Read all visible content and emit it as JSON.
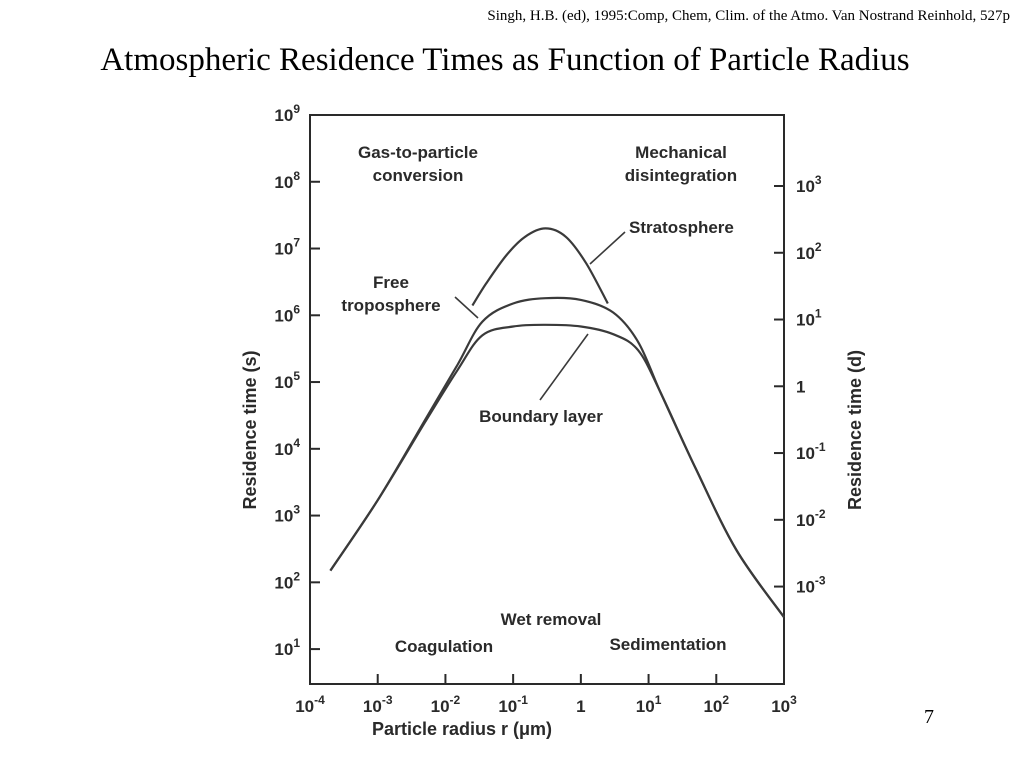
{
  "slide": {
    "citation": "Singh, H.B. (ed), 1995:Comp, Chem, Clim. of the Atmo. Van Nostrand Reinhold, 527p",
    "title": "Atmospheric Residence Times as Function of Particle Radius",
    "page_number": "7"
  },
  "chart_data": {
    "type": "line",
    "title": "",
    "xlabel": "Particle radius r (μm)",
    "ylabel": "Residence time (s)",
    "ylabel_right": "Residence time (d)",
    "xscale": "log",
    "yscale": "log",
    "xlim": [
      0.0001,
      1000
    ],
    "ylim": [
      3,
      1000000000
    ],
    "grid": false,
    "legend": "none",
    "x_ticks": [
      {
        "value": 0.0001,
        "base": "10",
        "exp": "-4"
      },
      {
        "value": 0.001,
        "base": "10",
        "exp": "-3"
      },
      {
        "value": 0.01,
        "base": "10",
        "exp": "-2"
      },
      {
        "value": 0.1,
        "base": "10",
        "exp": "-1"
      },
      {
        "value": 1,
        "base": "1",
        "exp": ""
      },
      {
        "value": 10,
        "base": "10",
        "exp": "1"
      },
      {
        "value": 100,
        "base": "10",
        "exp": "2"
      },
      {
        "value": 1000,
        "base": "10",
        "exp": "3"
      }
    ],
    "y_ticks_left": [
      {
        "value": 10,
        "base": "10",
        "exp": "1"
      },
      {
        "value": 100,
        "base": "10",
        "exp": "2"
      },
      {
        "value": 1000,
        "base": "10",
        "exp": "3"
      },
      {
        "value": 10000,
        "base": "10",
        "exp": "4"
      },
      {
        "value": 100000,
        "base": "10",
        "exp": "5"
      },
      {
        "value": 1000000,
        "base": "10",
        "exp": "6"
      },
      {
        "value": 10000000,
        "base": "10",
        "exp": "7"
      },
      {
        "value": 100000000,
        "base": "10",
        "exp": "8"
      },
      {
        "value": 1000000000,
        "base": "10",
        "exp": "9"
      }
    ],
    "y_ticks_right": [
      {
        "value": 0.001,
        "base": "10",
        "exp": "-3"
      },
      {
        "value": 0.01,
        "base": "10",
        "exp": "-2"
      },
      {
        "value": 0.1,
        "base": "10",
        "exp": "-1"
      },
      {
        "value": 1,
        "base": "1",
        "exp": ""
      },
      {
        "value": 10,
        "base": "10",
        "exp": "1"
      },
      {
        "value": 100,
        "base": "10",
        "exp": "2"
      },
      {
        "value": 1000,
        "base": "10",
        "exp": "3"
      }
    ],
    "series": [
      {
        "name": "Stratosphere",
        "points": [
          [
            0.025,
            1400000
          ],
          [
            0.04,
            3000000
          ],
          [
            0.08,
            8000000
          ],
          [
            0.15,
            15000000
          ],
          [
            0.3,
            20000000
          ],
          [
            0.6,
            15000000
          ],
          [
            1.2,
            6000000
          ],
          [
            2.5,
            1500000
          ]
        ]
      },
      {
        "name": "Free troposphere",
        "points": [
          [
            0.0002,
            150
          ],
          [
            0.001,
            1700
          ],
          [
            0.005,
            27000
          ],
          [
            0.015,
            180000
          ],
          [
            0.035,
            800000
          ],
          [
            0.1,
            1500000
          ],
          [
            0.3,
            1800000
          ],
          [
            1,
            1700000
          ],
          [
            3,
            1100000
          ],
          [
            7,
            400000
          ],
          [
            15,
            70000
          ],
          [
            50,
            5000
          ],
          [
            200,
            300
          ],
          [
            1000,
            30
          ]
        ]
      },
      {
        "name": "Boundary layer",
        "points": [
          [
            0.0002,
            150
          ],
          [
            0.001,
            1700
          ],
          [
            0.005,
            25000
          ],
          [
            0.015,
            150000
          ],
          [
            0.035,
            500000
          ],
          [
            0.1,
            680000
          ],
          [
            0.3,
            720000
          ],
          [
            1,
            680000
          ],
          [
            3,
            520000
          ],
          [
            7,
            300000
          ],
          [
            15,
            70000
          ],
          [
            50,
            5000
          ],
          [
            200,
            300
          ],
          [
            1000,
            30
          ]
        ]
      }
    ],
    "annotations": [
      {
        "lines": [
          "Gas-to-particle",
          "conversion"
        ]
      },
      {
        "lines": [
          "Mechanical",
          "disintegration"
        ]
      },
      {
        "lines": [
          "Stratosphere"
        ]
      },
      {
        "lines": [
          "Free",
          "troposphere"
        ]
      },
      {
        "lines": [
          "Boundary layer"
        ]
      },
      {
        "lines": [
          "Wet removal"
        ]
      },
      {
        "lines": [
          "Coagulation"
        ]
      },
      {
        "lines": [
          "Sedimentation"
        ]
      }
    ]
  }
}
